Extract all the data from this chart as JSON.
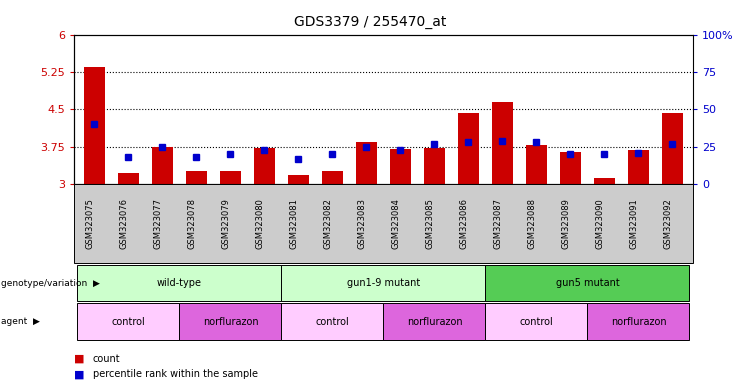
{
  "title": "GDS3379 / 255470_at",
  "samples": [
    "GSM323075",
    "GSM323076",
    "GSM323077",
    "GSM323078",
    "GSM323079",
    "GSM323080",
    "GSM323081",
    "GSM323082",
    "GSM323083",
    "GSM323084",
    "GSM323085",
    "GSM323086",
    "GSM323087",
    "GSM323088",
    "GSM323089",
    "GSM323090",
    "GSM323091",
    "GSM323092"
  ],
  "count_values": [
    5.35,
    3.22,
    3.75,
    3.27,
    3.27,
    3.72,
    3.18,
    3.27,
    3.85,
    3.71,
    3.72,
    4.42,
    4.65,
    3.78,
    3.65,
    3.12,
    3.68,
    4.42
  ],
  "percentile_values": [
    40,
    18,
    25,
    18,
    20,
    23,
    17,
    20,
    25,
    23,
    27,
    28,
    29,
    28,
    20,
    20,
    21,
    27
  ],
  "bar_color": "#cc0000",
  "dot_color": "#0000cc",
  "ylim_left": [
    3.0,
    6.0
  ],
  "ylim_right": [
    0,
    100
  ],
  "yticks_left": [
    3.0,
    3.75,
    4.5,
    5.25,
    6.0
  ],
  "ytick_labels_left": [
    "3",
    "3.75",
    "4.5",
    "5.25",
    "6"
  ],
  "yticks_right": [
    0,
    25,
    50,
    75,
    100
  ],
  "ytick_labels_right": [
    "0",
    "25",
    "50",
    "75",
    "100%"
  ],
  "hlines": [
    3.75,
    4.5,
    5.25
  ],
  "genotype_groups": [
    {
      "label": "wild-type",
      "start": 0,
      "end": 5,
      "color": "#ccffcc"
    },
    {
      "label": "gun1-9 mutant",
      "start": 6,
      "end": 11,
      "color": "#ccffcc"
    },
    {
      "label": "gun5 mutant",
      "start": 12,
      "end": 17,
      "color": "#55cc55"
    }
  ],
  "agent_groups": [
    {
      "label": "control",
      "start": 0,
      "end": 2,
      "color": "#ffccff"
    },
    {
      "label": "norflurazon",
      "start": 3,
      "end": 5,
      "color": "#dd66dd"
    },
    {
      "label": "control",
      "start": 6,
      "end": 8,
      "color": "#ffccff"
    },
    {
      "label": "norflurazon",
      "start": 9,
      "end": 11,
      "color": "#dd66dd"
    },
    {
      "label": "control",
      "start": 12,
      "end": 14,
      "color": "#ffccff"
    },
    {
      "label": "norflurazon",
      "start": 15,
      "end": 17,
      "color": "#dd66dd"
    }
  ],
  "legend_count_color": "#cc0000",
  "legend_pct_color": "#0000cc",
  "bg_color": "#cccccc",
  "panel_bg": "#ffffff"
}
